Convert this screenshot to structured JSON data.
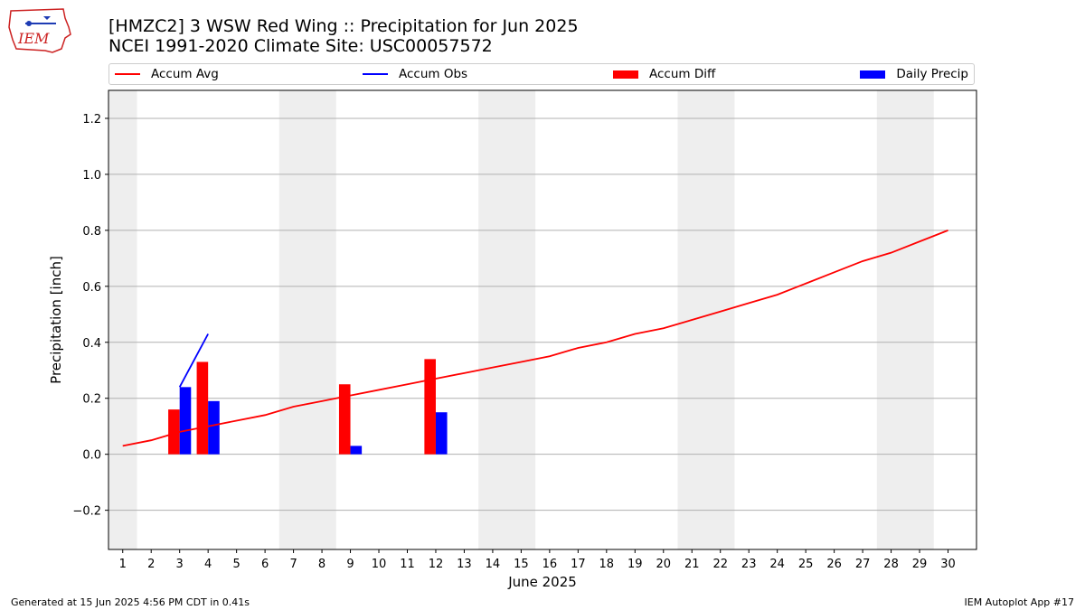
{
  "header": {
    "title_line1": "[HMZC2] 3 WSW Red Wing :: Precipitation for Jun 2025",
    "title_line2": "NCEI 1991-2020 Climate Site: USC00057572",
    "logo_text": "IEM"
  },
  "footer": {
    "generated": "Generated at 15 Jun 2025 4:56 PM CDT in 0.41s",
    "app": "IEM Autoplot App #17"
  },
  "colors": {
    "avg": "#ff0000",
    "obs": "#0000ff",
    "diff": "#ff0000",
    "daily": "#0000ff",
    "weekend_shade": "#eeeeee",
    "grid": "#b0b0b0"
  },
  "chart_data": {
    "type": "bar",
    "title": "[HMZC2] 3 WSW Red Wing :: Precipitation for Jun 2025",
    "subtitle": "NCEI 1991-2020 Climate Site: USC00057572",
    "xlabel": "June 2025",
    "ylabel": "Precipitation [inch]",
    "xlim": [
      0.5,
      31.0
    ],
    "ylim": [
      -0.34,
      1.3
    ],
    "yticks": [
      -0.2,
      0.0,
      0.2,
      0.4,
      0.6,
      0.8,
      1.0,
      1.2
    ],
    "ytick_labels": [
      "−0.2",
      "0.0",
      "0.2",
      "0.4",
      "0.6",
      "0.8",
      "1.0",
      "1.2"
    ],
    "xticks": [
      1,
      2,
      3,
      4,
      5,
      6,
      7,
      8,
      9,
      10,
      11,
      12,
      13,
      14,
      15,
      16,
      17,
      18,
      19,
      20,
      21,
      22,
      23,
      24,
      25,
      26,
      27,
      28,
      29,
      30
    ],
    "grid": "horizontal",
    "legend_position": "top",
    "weekend_shading": [
      [
        0.5,
        1.5
      ],
      [
        6.5,
        8.5
      ],
      [
        13.5,
        15.5
      ],
      [
        20.5,
        22.5
      ],
      [
        27.5,
        29.5
      ]
    ],
    "series": [
      {
        "name": "Accum Avg",
        "kind": "line",
        "x": [
          1,
          2,
          3,
          4,
          5,
          6,
          7,
          8,
          9,
          10,
          11,
          12,
          13,
          14,
          15,
          16,
          17,
          18,
          19,
          20,
          21,
          22,
          23,
          24,
          25,
          26,
          27,
          28,
          29,
          30
        ],
        "values": [
          0.03,
          0.05,
          0.08,
          0.1,
          0.12,
          0.14,
          0.17,
          0.19,
          0.21,
          0.23,
          0.25,
          0.27,
          0.29,
          0.31,
          0.33,
          0.35,
          0.38,
          0.4,
          0.43,
          0.45,
          0.48,
          0.51,
          0.54,
          0.57,
          0.61,
          0.65,
          0.69,
          0.72,
          0.76,
          0.8
        ]
      },
      {
        "name": "Accum Obs",
        "kind": "line",
        "x": [
          3,
          4
        ],
        "values": [
          0.24,
          0.43
        ]
      },
      {
        "name": "Accum Diff",
        "kind": "bar",
        "x": [
          3,
          4,
          9,
          12
        ],
        "values": [
          0.16,
          0.33,
          0.25,
          0.34
        ]
      },
      {
        "name": "Daily Precip",
        "kind": "bar",
        "x": [
          3,
          4,
          9,
          12
        ],
        "values": [
          0.24,
          0.19,
          0.03,
          0.15
        ]
      }
    ]
  }
}
